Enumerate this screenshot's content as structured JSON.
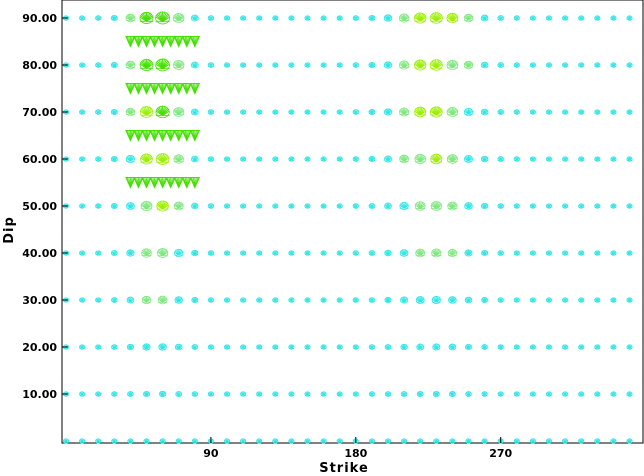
{
  "chart_data": {
    "type": "scatter",
    "title": "",
    "xlabel": "Strike",
    "ylabel": "Dip",
    "xlim": [
      -2,
      358
    ],
    "ylim": [
      0,
      90
    ],
    "x_ticks": [
      {
        "value": 90,
        "label": "90"
      },
      {
        "value": 180,
        "label": "180"
      },
      {
        "value": 270,
        "label": "270"
      }
    ],
    "y_ticks": [
      {
        "value": 10,
        "label": "10.00"
      },
      {
        "value": 20,
        "label": "20.00"
      },
      {
        "value": 30,
        "label": "30.00"
      },
      {
        "value": 40,
        "label": "40.00"
      },
      {
        "value": 50,
        "label": "50.00"
      },
      {
        "value": 60,
        "label": "60.00"
      },
      {
        "value": 70,
        "label": "70.00"
      },
      {
        "value": 80,
        "label": "80.00"
      },
      {
        "value": 90,
        "label": "90.00"
      }
    ],
    "grid": false,
    "strike_step": 10,
    "dips": [
      0,
      10,
      20,
      30,
      40,
      50,
      60,
      70,
      80,
      90
    ],
    "intermediate_dips": [
      55,
      65,
      75,
      85
    ],
    "intermediate_strike_range": [
      40,
      80
    ],
    "colors": {
      "low_fit": "#2ee6e6",
      "mid_fit": "#7fe87f",
      "high_fit": "#9bf000",
      "best_fit": "#44e000"
    }
  }
}
